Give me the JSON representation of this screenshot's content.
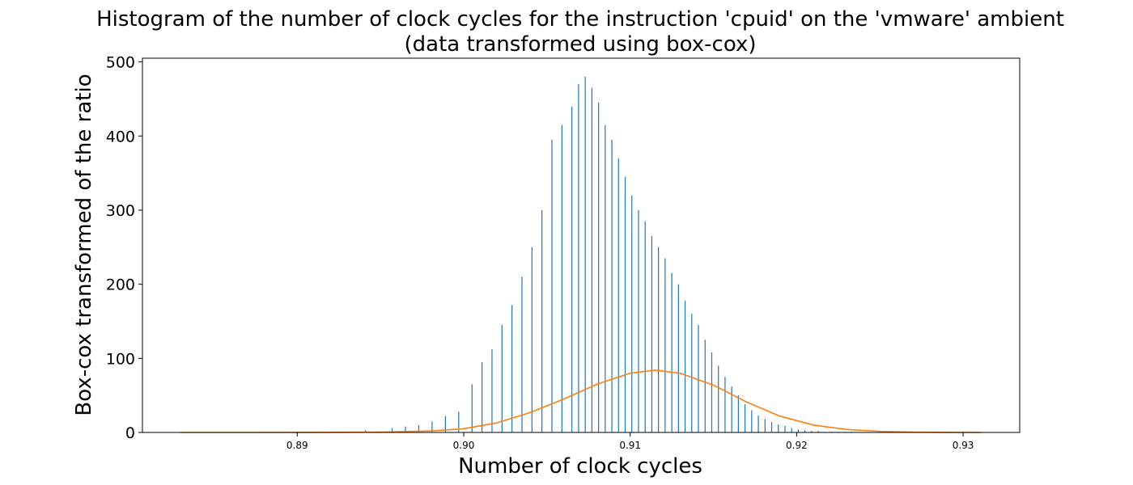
{
  "chart_data": {
    "type": "bar",
    "title_line1": "Histogram of the number of clock cycles for the instruction 'cpuid' on the 'vmware' ambient",
    "title_line2": "(data transformed using box-cox)",
    "xlabel": "Number of clock cycles",
    "ylabel": "Box-cox transformed of the ratio",
    "xlim": [
      0.8807,
      0.9334
    ],
    "ylim": [
      0,
      505
    ],
    "xticks": [
      0.89,
      0.9,
      0.91,
      0.92,
      0.93
    ],
    "xtick_labels": [
      "0.89",
      "0.90",
      "0.91",
      "0.92",
      "0.93"
    ],
    "yticks": [
      0,
      100,
      200,
      300,
      400,
      500
    ],
    "ytick_labels": [
      "0",
      "100",
      "200",
      "300",
      "400",
      "500"
    ],
    "grid": false,
    "bar_color": "#1f77b4",
    "curve_color": "#ff7f0e",
    "series": [
      {
        "kind": "bar",
        "x": [
          0.8941,
          0.8957,
          0.8965,
          0.8973,
          0.8981,
          0.8989,
          0.8997,
          0.9005,
          0.9011,
          0.9017,
          0.9023,
          0.9029,
          0.9035,
          0.9041,
          0.9047,
          0.9053,
          0.9059,
          0.9065,
          0.9069,
          0.9073,
          0.9077,
          0.9081,
          0.9085,
          0.9089,
          0.9093,
          0.9097,
          0.9101,
          0.9105,
          0.9109,
          0.9113,
          0.9117,
          0.9121,
          0.9125,
          0.9129,
          0.9133,
          0.9137,
          0.9141,
          0.9145,
          0.9149,
          0.9153,
          0.9157,
          0.9161,
          0.9165,
          0.9169,
          0.9173,
          0.9177,
          0.9181,
          0.9185,
          0.9189,
          0.9193,
          0.9197,
          0.9201,
          0.9205,
          0.9209,
          0.9213,
          0.9217,
          0.9221,
          0.9225,
          0.9229,
          0.9233
        ],
        "values": [
          3,
          6,
          8,
          10,
          15,
          22,
          28,
          65,
          95,
          112,
          145,
          172,
          210,
          250,
          300,
          395,
          415,
          440,
          470,
          480,
          465,
          445,
          415,
          395,
          370,
          345,
          320,
          300,
          285,
          265,
          250,
          235,
          215,
          200,
          178,
          160,
          145,
          125,
          108,
          90,
          75,
          62,
          50,
          38,
          30,
          23,
          18,
          14,
          11,
          9,
          6,
          4,
          3,
          2,
          2,
          1,
          1,
          1,
          1,
          1
        ]
      },
      {
        "kind": "line",
        "x": [
          0.883,
          0.887,
          0.891,
          0.895,
          0.898,
          0.9,
          0.902,
          0.904,
          0.906,
          0.908,
          0.91,
          0.9115,
          0.913,
          0.915,
          0.917,
          0.919,
          0.921,
          0.923,
          0.925,
          0.927,
          0.929,
          0.9311
        ],
        "values": [
          0,
          0,
          0.1,
          0.5,
          2,
          5,
          13,
          27,
          45,
          65,
          80,
          84,
          80,
          64,
          41,
          22,
          10,
          4,
          1.5,
          0.5,
          0.1,
          0
        ]
      }
    ]
  }
}
